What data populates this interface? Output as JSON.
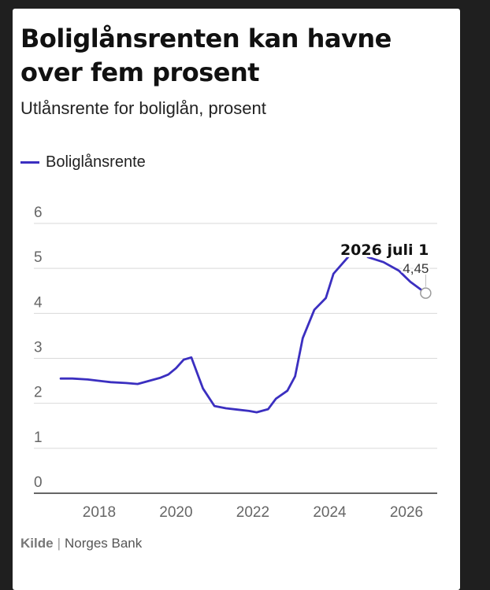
{
  "header": {
    "title": "Boliglånsrenten kan havne over fem prosent",
    "subtitle": "Utlånsrente for boliglån, prosent"
  },
  "footer": {
    "source_label": "Kilde",
    "source_value": "Norges Bank"
  },
  "colors": {
    "line": "#3b2fc0",
    "grid": "#d9d9d9",
    "axis": "#333333",
    "tick_text": "#666666"
  },
  "chart_data": {
    "type": "line",
    "title": "Boliglånsrenten kan havne over fem prosent",
    "subtitle": "Utlånsrente for boliglån, prosent",
    "legend_position": "top-left",
    "grid": true,
    "xlim": [
      2016.3,
      2026.8
    ],
    "ylim": [
      0,
      6
    ],
    "x_ticks": [
      2018,
      2020,
      2022,
      2024,
      2026
    ],
    "y_ticks": [
      0,
      1,
      2,
      3,
      4,
      5,
      6
    ],
    "series": [
      {
        "name": "Boliglånsrente",
        "x": [
          2017.0,
          2017.3,
          2017.7,
          2018.0,
          2018.3,
          2018.7,
          2019.0,
          2019.3,
          2019.6,
          2019.8,
          2020.0,
          2020.2,
          2020.4,
          2020.7,
          2021.0,
          2021.3,
          2021.6,
          2021.9,
          2022.1,
          2022.4,
          2022.6,
          2022.9,
          2023.1,
          2023.3,
          2023.6,
          2023.9,
          2024.1,
          2024.5,
          2024.8,
          2025.0,
          2025.4,
          2025.8,
          2026.1,
          2026.5
        ],
        "y": [
          2.55,
          2.55,
          2.53,
          2.5,
          2.47,
          2.45,
          2.43,
          2.5,
          2.57,
          2.64,
          2.78,
          2.97,
          3.02,
          2.33,
          1.94,
          1.89,
          1.86,
          1.83,
          1.8,
          1.87,
          2.1,
          2.28,
          2.6,
          3.45,
          4.08,
          4.34,
          4.88,
          5.27,
          5.4,
          5.25,
          5.14,
          4.95,
          4.7,
          4.45
        ]
      }
    ],
    "annotations": [
      {
        "label": "2026 juli 1",
        "value": "4,45",
        "x": 2026.5,
        "y": 4.45
      }
    ]
  }
}
